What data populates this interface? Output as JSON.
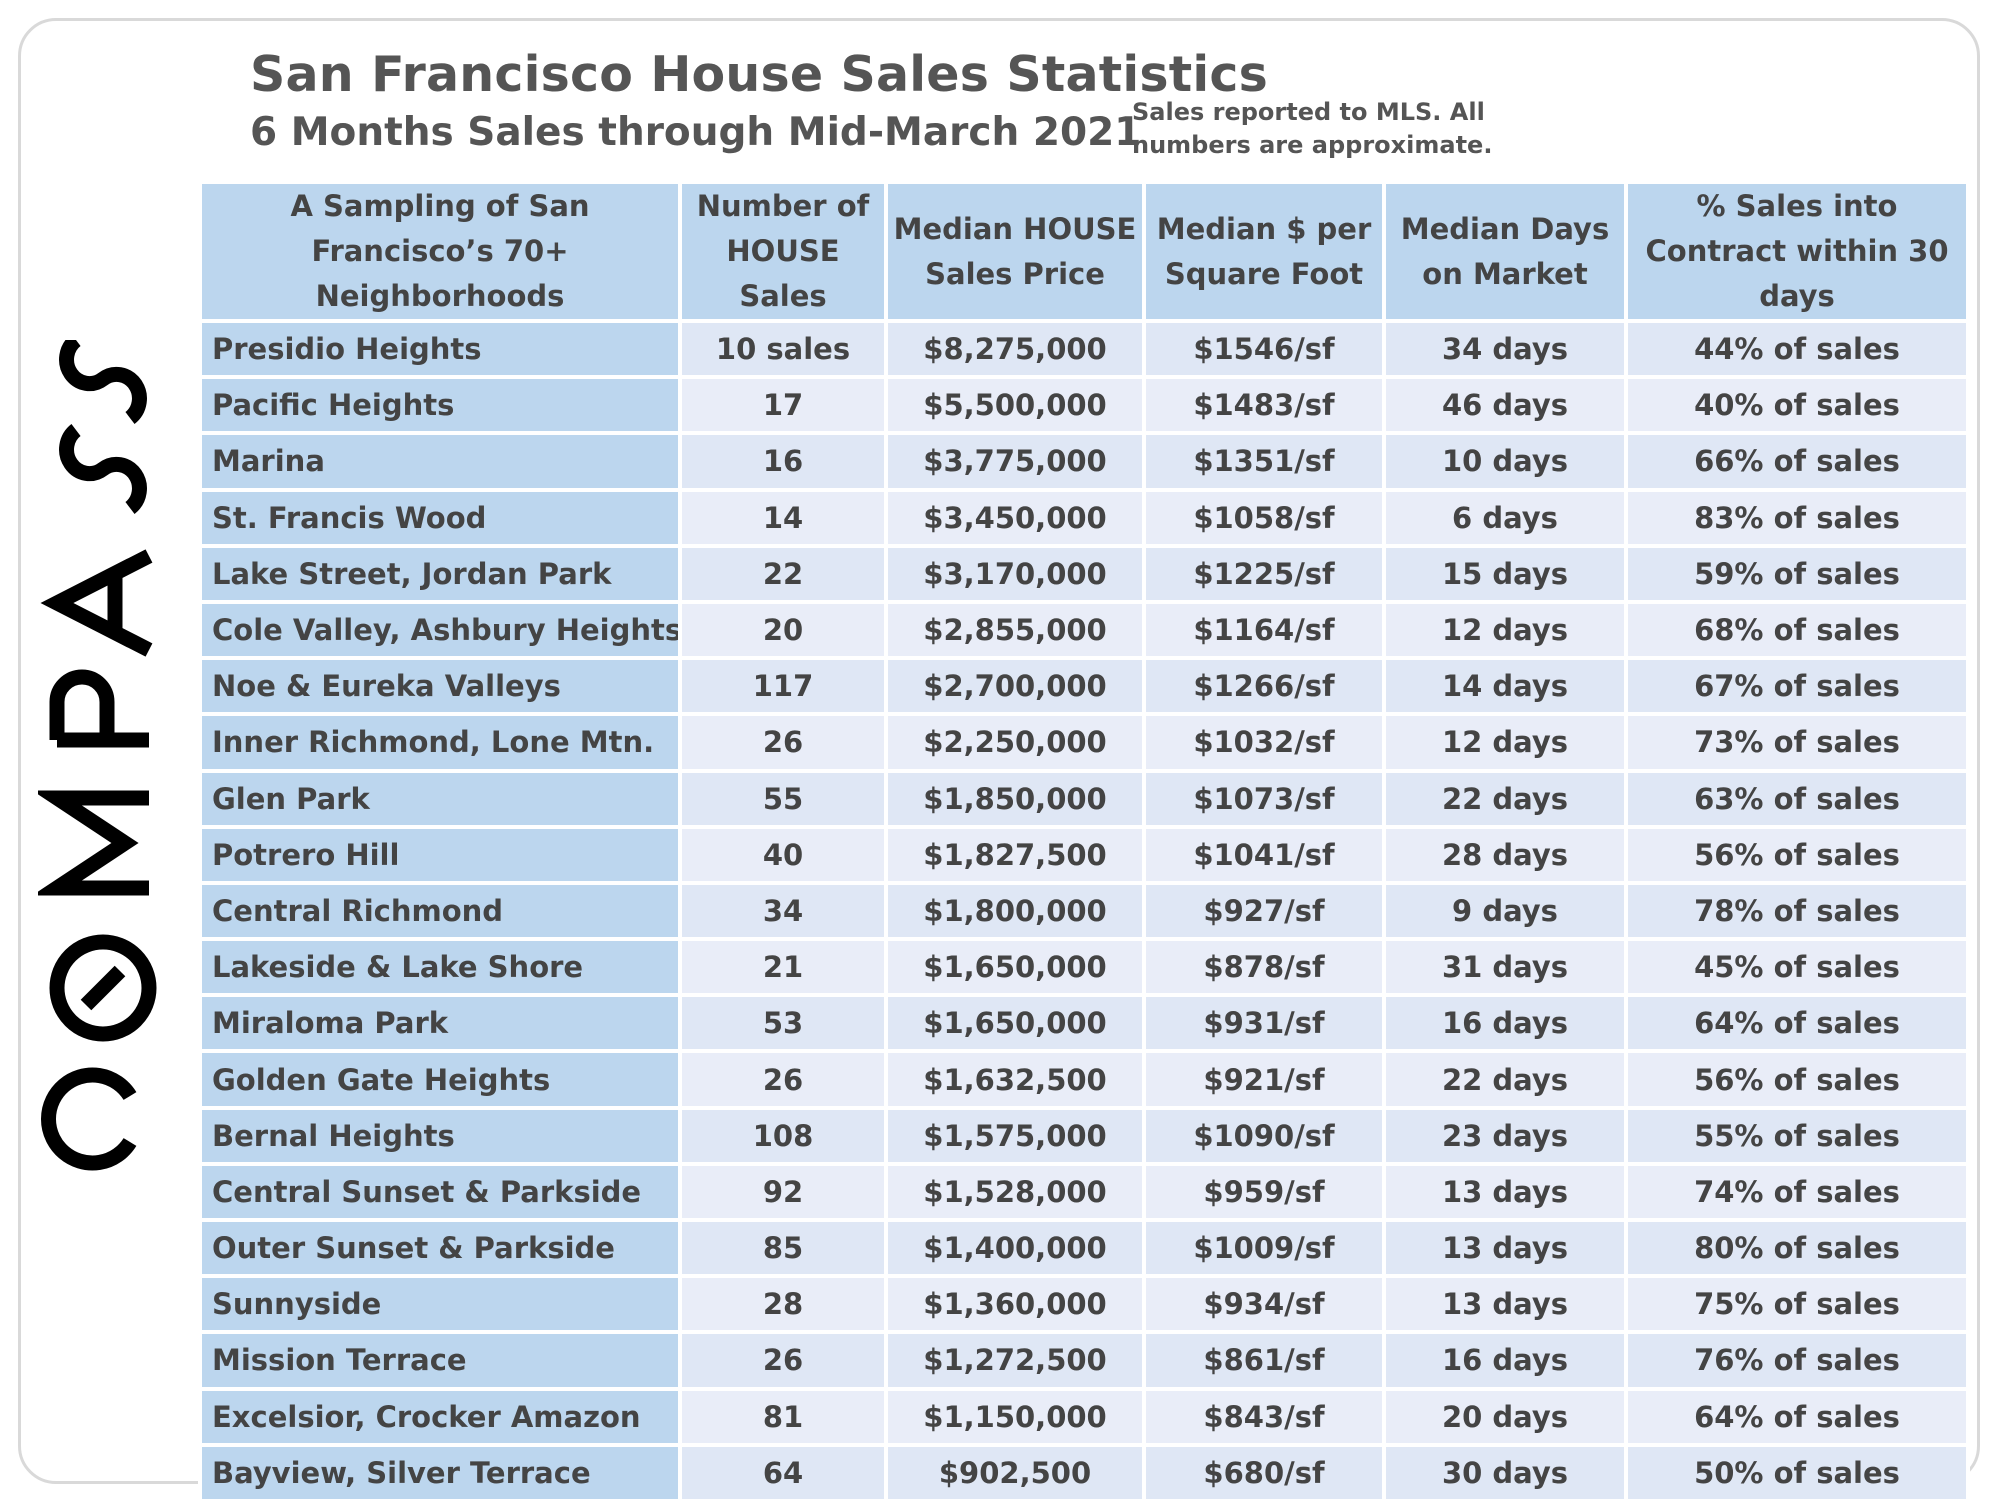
{
  "brand": {
    "name": "COMPASS",
    "color": "#000000"
  },
  "header": {
    "title": "San Francisco House Sales Statistics",
    "subtitle": "6 Months Sales through Mid-March 2021",
    "note": "Sales reported to MLS. All numbers are approximate."
  },
  "colors": {
    "header_bg": "#bcd6ee",
    "row_bg": "#dfe7f5",
    "row_alt_bg": "#e9edf8",
    "text": "#444444"
  },
  "table": {
    "columns": [
      "A Sampling of San Francisco’s 70+ Neighborhoods",
      "Number of HOUSE Sales",
      "Median HOUSE Sales Price",
      "Median $ per Square Foot",
      "Median Days on Market",
      "% Sales into Contract within 30 days"
    ],
    "rows": [
      [
        "Presidio Heights",
        "10 sales",
        "$8,275,000",
        "$1546/sf",
        "34 days",
        "44% of sales"
      ],
      [
        "Pacific Heights",
        "17",
        "$5,500,000",
        "$1483/sf",
        "46 days",
        "40% of sales"
      ],
      [
        "Marina",
        "16",
        "$3,775,000",
        "$1351/sf",
        "10 days",
        "66% of sales"
      ],
      [
        "St. Francis Wood",
        "14",
        "$3,450,000",
        "$1058/sf",
        "6 days",
        "83% of sales"
      ],
      [
        "Lake Street, Jordan Park",
        "22",
        "$3,170,000",
        "$1225/sf",
        "15 days",
        "59% of sales"
      ],
      [
        "Cole Valley, Ashbury Heights",
        "20",
        "$2,855,000",
        "$1164/sf",
        "12 days",
        "68% of sales"
      ],
      [
        "Noe & Eureka Valleys",
        "117",
        "$2,700,000",
        "$1266/sf",
        "14 days",
        "67% of sales"
      ],
      [
        "Inner Richmond, Lone Mtn.",
        "26",
        "$2,250,000",
        "$1032/sf",
        "12 days",
        "73% of sales"
      ],
      [
        "Glen Park",
        "55",
        "$1,850,000",
        "$1073/sf",
        "22 days",
        "63% of sales"
      ],
      [
        "Potrero Hill",
        "40",
        "$1,827,500",
        "$1041/sf",
        "28 days",
        "56% of sales"
      ],
      [
        "Central Richmond",
        "34",
        "$1,800,000",
        "$927/sf",
        "9 days",
        "78% of sales"
      ],
      [
        "Lakeside & Lake Shore",
        "21",
        "$1,650,000",
        "$878/sf",
        "31 days",
        "45% of sales"
      ],
      [
        "Miraloma Park",
        "53",
        "$1,650,000",
        "$931/sf",
        "16 days",
        "64% of sales"
      ],
      [
        "Golden Gate Heights",
        "26",
        "$1,632,500",
        "$921/sf",
        "22 days",
        "56% of sales"
      ],
      [
        "Bernal Heights",
        "108",
        "$1,575,000",
        "$1090/sf",
        "23 days",
        "55% of sales"
      ],
      [
        "Central Sunset & Parkside",
        "92",
        "$1,528,000",
        "$959/sf",
        "13 days",
        "74% of sales"
      ],
      [
        "Outer Sunset & Parkside",
        "85",
        "$1,400,000",
        "$1009/sf",
        "13 days",
        "80% of sales"
      ],
      [
        "Sunnyside",
        "28",
        "$1,360,000",
        "$934/sf",
        "13 days",
        "75% of sales"
      ],
      [
        "Mission Terrace",
        "26",
        "$1,272,500",
        "$861/sf",
        "16 days",
        "76% of sales"
      ],
      [
        "Excelsior, Crocker Amazon",
        "81",
        "$1,150,000",
        "$843/sf",
        "20 days",
        "64% of sales"
      ],
      [
        "Bayview, Silver Terrace",
        "64",
        "$902,500",
        "$680/sf",
        "30 days",
        "50% of sales"
      ]
    ]
  }
}
